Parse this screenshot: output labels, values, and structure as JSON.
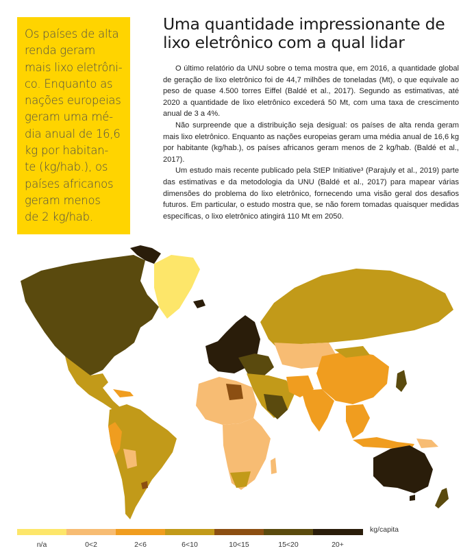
{
  "callout": {
    "lines": [
      "Os países de alta",
      "renda geram",
      "mais lixo eletrôni-",
      "co. Enquanto as",
      "nações europeias",
      "geram uma mé-",
      "dia anual de 16,6",
      "kg por habitan-",
      "te (kg/hab.), os",
      "países africanos",
      "geram menos",
      "de 2 kg/hab."
    ]
  },
  "headline": {
    "line1": "Uma quantidade impressionante de",
    "line2": "lixo eletrônico com a qual lidar"
  },
  "article": {
    "paragraphs": [
      "O último relatório da UNU sobre o tema mostra que, em 2016, a quantidade global de geração de lixo eletrônico foi de 44,7 milhões de toneladas (Mt), o que equivale ao peso de quase 4.500 torres Eiffel (Baldé et al., 2017). Segundo as estimativas, até 2020 a quantidade de lixo eletrônico excederá 50 Mt, com uma taxa de crescimento anual de 3 a 4%.",
      "Não surpreende que a distribuição seja desigual: os países de alta renda geram mais lixo eletrônico. Enquanto as nações europeias geram uma média anual de 16,6 kg por habitante (kg/hab.), os países africanos geram menos de 2 kg/hab. (Baldé et al., 2017).",
      "Um estudo mais recente publicado pela StEP Initiative³ (Parajuly et al., 2019) parte das estimativas e da metodologia da UNU (Baldé et al., 2017) para mapear várias dimensões do problema do lixo eletrônico, fornecendo uma visão geral dos desafios futuros. Em particular, o estudo mostra que, se não forem tomadas quaisquer medidas específicas, o lixo eletrônico atingirá 110 Mt em 2050."
    ]
  },
  "legend": {
    "unit": "kg/capita",
    "items": [
      {
        "label": "n/a",
        "color": "#fde66a"
      },
      {
        "label": "0<2",
        "color": "#f7bc73"
      },
      {
        "label": "2<6",
        "color": "#f09d1f"
      },
      {
        "label": "6<10",
        "color": "#c29a19"
      },
      {
        "label": "10<15",
        "color": "#8c4f12"
      },
      {
        "label": "15<20",
        "color": "#5a4a0e"
      },
      {
        "label": "20+",
        "color": "#2a1d0a"
      }
    ]
  }
}
